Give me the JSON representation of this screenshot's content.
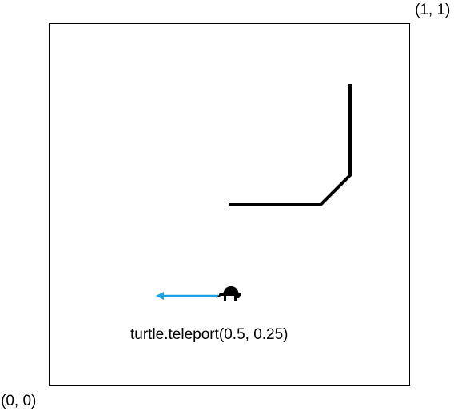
{
  "labels": {
    "top_right_corner": "(1, 1)",
    "bottom_left_corner": "(0, 0)",
    "code_caption": "turtle.teleport(0.5, 0.25)"
  },
  "colors": {
    "pen_line": "#000000",
    "movement_arrow": "#1aa3e0",
    "turtle": "#000000",
    "frame": "#000000",
    "background": "#ffffff"
  },
  "icons": {
    "turtle": "turtle-icon",
    "arrow": "left-arrow-icon"
  }
}
